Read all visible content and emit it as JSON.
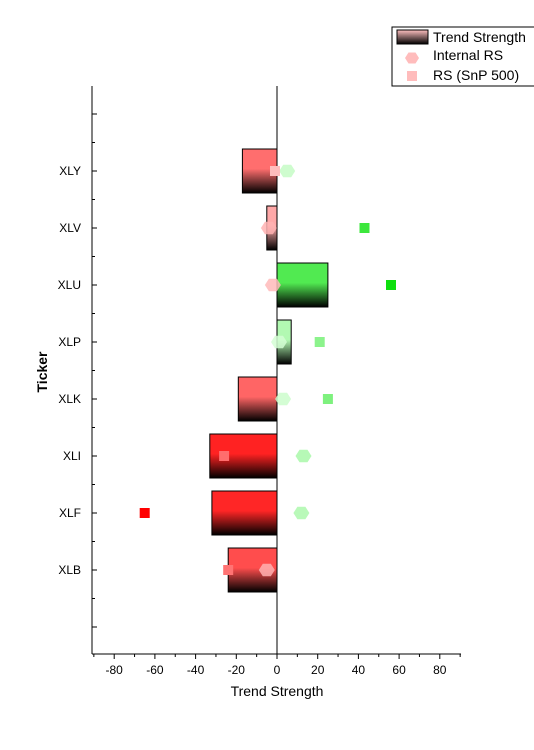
{
  "chart_data": {
    "type": "bar",
    "orientation": "horizontal",
    "xlabel": "Trend Strength",
    "ylabel": "Ticker",
    "xlim": [
      -90,
      90
    ],
    "xticks": [
      -80,
      -60,
      -40,
      -20,
      0,
      20,
      40,
      60,
      80
    ],
    "categories": [
      "XLY",
      "XLV",
      "XLU",
      "XLP",
      "XLK",
      "XLI",
      "XLF",
      "XLB"
    ],
    "series": [
      {
        "name": "Trend Strength",
        "kind": "bar",
        "values": [
          -17,
          -5,
          25,
          7,
          -19,
          -33,
          -32,
          -24
        ]
      },
      {
        "name": "Internal RS",
        "kind": "hexagon",
        "values": [
          5,
          -4,
          -2,
          1,
          3,
          13,
          12,
          -5
        ]
      },
      {
        "name": "RS (SnP 500)",
        "kind": "square",
        "values": [
          -1,
          43,
          56,
          21,
          25,
          -26,
          -65,
          -24
        ]
      }
    ],
    "colors": {
      "negative_strong": "#ff0000",
      "negative_light": "#ffc0c0",
      "positive_strong": "#00dd00",
      "positive_light": "#d8ffd8",
      "bar_bottom": "#000000"
    },
    "legend_position": "top-right",
    "grid": false
  }
}
